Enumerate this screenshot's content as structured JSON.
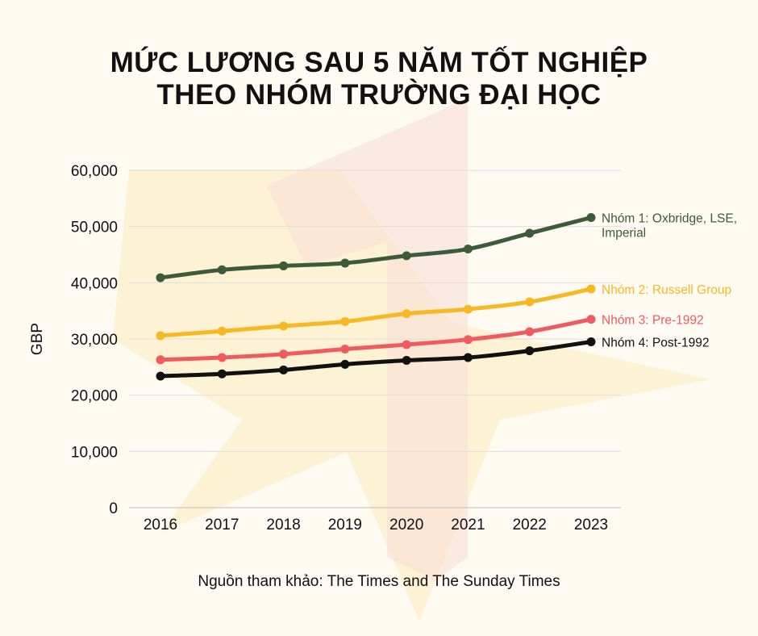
{
  "title_line1": "MỨC LƯƠNG SAU 5 NĂM TỐT NGHIỆP",
  "title_line2": "THEO NHÓM TRƯỜNG ĐẠI HỌC",
  "source": "Nguồn tham khảo: The Times and The Sunday Times",
  "chart_data": {
    "type": "line",
    "title": "MỨC LƯƠNG SAU 5 NĂM TỐT NGHIỆP THEO NHÓM TRƯỜNG ĐẠI HỌC",
    "xlabel": "",
    "ylabel": "GBP",
    "ylim": [
      0,
      60000
    ],
    "yticks": [
      "0",
      "10,000",
      "20,000",
      "30,000",
      "40,000",
      "50,000",
      "60,000"
    ],
    "ytick_values": [
      0,
      10000,
      20000,
      30000,
      40000,
      50000,
      60000
    ],
    "x": [
      "2016",
      "2017",
      "2018",
      "2019",
      "2020",
      "2021",
      "2022",
      "2023"
    ],
    "grid": true,
    "legend": "inline labels at line ends",
    "series": [
      {
        "name": "Nhóm 1: Oxbridge, LSE, Imperial",
        "label_lines": [
          "Nhóm 1: Oxbridge, LSE,",
          "Imperial"
        ],
        "color": "#3d5a3a",
        "values": [
          40900,
          42300,
          43000,
          43500,
          44800,
          46000,
          48800,
          51600
        ]
      },
      {
        "name": "Nhóm 2: Russell Group",
        "label_lines": [
          "Nhóm 2: Russell Group"
        ],
        "color": "#f8b824",
        "values": [
          30600,
          31400,
          32300,
          33100,
          34500,
          35300,
          36600,
          38900
        ]
      },
      {
        "name": "Nhóm 3: Pre-1992",
        "label_lines": [
          "Nhóm 3: Pre-1992"
        ],
        "color": "#ef5b5f",
        "values": [
          26300,
          26700,
          27300,
          28200,
          29000,
          29900,
          31300,
          33500
        ]
      },
      {
        "name": "Nhóm 4: Post-1992",
        "label_lines": [
          "Nhóm 4: Post-1992"
        ],
        "color": "#111111",
        "values": [
          23400,
          23800,
          24500,
          25500,
          26200,
          26700,
          27900,
          29500
        ]
      }
    ]
  }
}
